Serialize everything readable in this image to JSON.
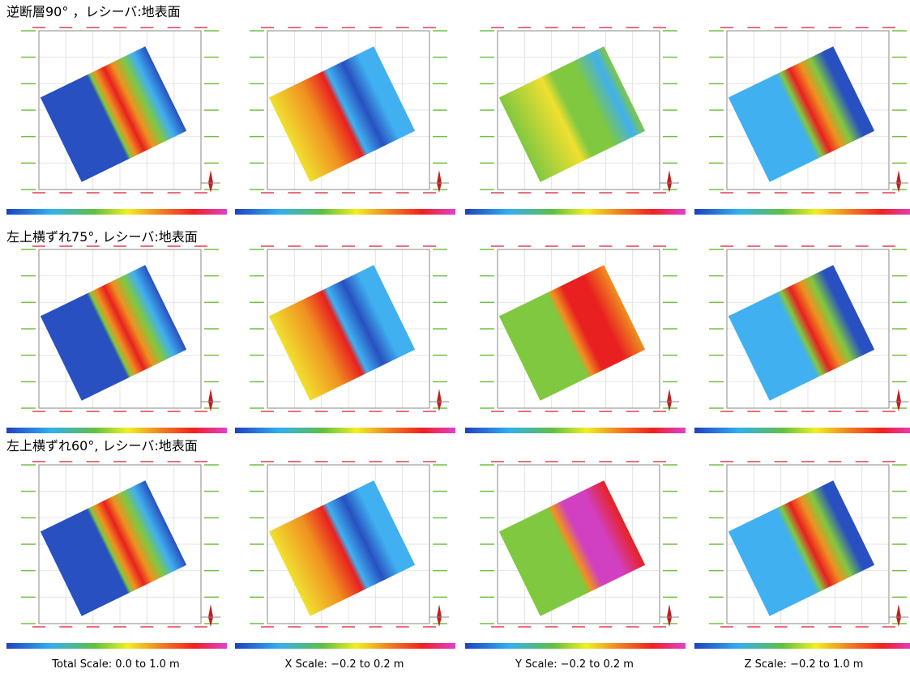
{
  "rows": [
    {
      "title": "逆断層90° ，レシーバ:地表面"
    },
    {
      "title": "左上横ずれ75°, レシーバ:地表面"
    },
    {
      "title": "左上横ずれ60°, レシーバ:地表面"
    }
  ],
  "scales": [
    "Total Scale: 0.0 to 1.0 m",
    "X Scale: −0.2 to 0.2 m",
    "Y Scale: −0.2 to 0.2 m",
    "Z Scale: −0.2 to 1.0 m"
  ]
}
